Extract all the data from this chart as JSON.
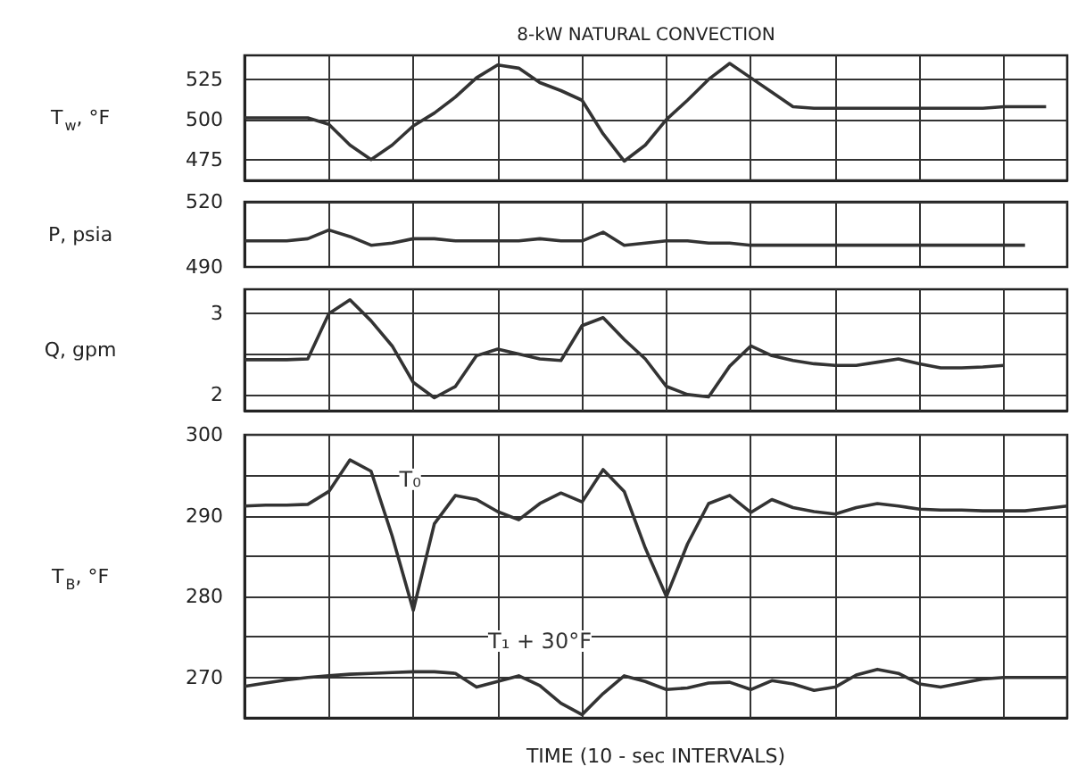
{
  "chart_data": [
    {
      "type": "line",
      "title": "8-kW NATURAL CONVECTION",
      "ylabel": "T$_{w}$, °F",
      "categories": [
        null,
        null,
        null,
        null,
        null,
        null,
        null,
        null,
        null,
        null,
        null,
        null,
        null,
        null,
        null,
        null,
        null,
        null,
        null,
        null,
        null,
        null,
        null,
        null,
        null,
        null,
        null,
        null,
        null,
        null,
        null,
        null,
        null,
        null,
        null,
        null,
        null,
        null,
        null,
        null
      ],
      "series": [
        {
          "color": "#333333",
          "values": [
            501,
            501,
            501,
            501,
            497,
            484,
            475,
            484,
            496,
            504,
            514,
            526,
            534,
            532,
            523,
            518,
            512,
            491,
            474,
            484,
            500,
            512,
            525,
            535,
            526,
            517,
            508,
            507,
            507,
            507,
            507,
            507,
            507,
            507,
            507,
            507,
            508,
            508,
            508,
            null
          ]
        }
      ],
      "ylim": [
        462,
        540
      ],
      "yticks": [
        475,
        500,
        525
      ],
      "grid": true,
      "tick_labels": "y"
    },
    {
      "type": "line",
      "ylabel": "P, psia",
      "categories": [
        null,
        null,
        null,
        null,
        null,
        null,
        null,
        null,
        null,
        null,
        null,
        null,
        null,
        null,
        null,
        null,
        null,
        null,
        null,
        null,
        null,
        null,
        null,
        null,
        null,
        null,
        null,
        null,
        null,
        null,
        null,
        null,
        null,
        null,
        null,
        null,
        null,
        null,
        null,
        null
      ],
      "series": [
        {
          "color": "#333333",
          "values": [
            502,
            502,
            502,
            503,
            507,
            504,
            500,
            501,
            503,
            503,
            502,
            502,
            502,
            502,
            503,
            502,
            502,
            506,
            500,
            501,
            502,
            502,
            501,
            501,
            500,
            500,
            500,
            500,
            500,
            500,
            500,
            500,
            500,
            500,
            500,
            500,
            500,
            500,
            null,
            null
          ]
        }
      ],
      "ylim": [
        490,
        520
      ],
      "yticks": [
        490,
        520
      ],
      "grid": true,
      "tick_labels": "y"
    },
    {
      "type": "line",
      "ylabel": "Q, gpm",
      "categories": [
        null,
        null,
        null,
        null,
        null,
        null,
        null,
        null,
        null,
        null,
        null,
        null,
        null,
        null,
        null,
        null,
        null,
        null,
        null,
        null,
        null,
        null,
        null,
        null,
        null,
        null,
        null,
        null,
        null,
        null,
        null,
        null,
        null,
        null,
        null,
        null,
        null,
        null,
        null,
        null
      ],
      "series": [
        {
          "color": "#333333",
          "values": [
            2.43,
            2.43,
            2.43,
            2.44,
            3.0,
            3.17,
            2.91,
            2.6,
            2.15,
            1.96,
            2.1,
            2.48,
            2.56,
            2.5,
            2.44,
            2.42,
            2.85,
            2.95,
            2.68,
            2.44,
            2.1,
            2.0,
            1.97,
            2.35,
            2.6,
            2.48,
            2.42,
            2.38,
            2.36,
            2.36,
            2.4,
            2.44,
            2.38,
            2.33,
            2.33,
            2.34,
            2.36,
            null,
            null,
            null
          ]
        }
      ],
      "ylim": [
        1.8,
        3.3
      ],
      "yticks": [
        2,
        {
          "value": 2.5,
          "label": null
        },
        3
      ],
      "grid": true,
      "tick_labels": "y"
    },
    {
      "type": "line",
      "ylabel": "T$_{B}$, °F",
      "xlabel": "TIME (10 - sec INTERVALS)",
      "categories": [
        null,
        null,
        null,
        null,
        null,
        null,
        null,
        null,
        null,
        null,
        null,
        null,
        null,
        null,
        null,
        null,
        null,
        null,
        null,
        null,
        null,
        null,
        null,
        null,
        null,
        null,
        null,
        null,
        null,
        null,
        null,
        null,
        null,
        null,
        null,
        null,
        null,
        null,
        null,
        null
      ],
      "series": [
        {
          "name": "T₀",
          "color": "#333333",
          "values": [
            291.2,
            291.3,
            291.3,
            291.4,
            293,
            296.9,
            295.5,
            287.5,
            278.3,
            289,
            292.5,
            292,
            290.5,
            289.5,
            291.5,
            292.8,
            291.7,
            295.7,
            293,
            286,
            280,
            286.5,
            291.5,
            292.5,
            290.4,
            292,
            291,
            290.5,
            290.2,
            291,
            291.5,
            291.2,
            290.8,
            290.7,
            290.7,
            290.6,
            290.6,
            290.6,
            290.9,
            291.2
          ]
        },
        {
          "name": "T₁ + 30°F",
          "color": "#333333",
          "values": [
            268.9,
            269.3,
            269.7,
            270,
            270.2,
            270.4,
            270.5,
            270.6,
            270.7,
            270.7,
            270.5,
            268.8,
            269.5,
            270.2,
            269,
            266.8,
            265.4,
            268,
            270.2,
            269.5,
            268.5,
            268.7,
            269.3,
            269.4,
            268.5,
            269.6,
            269.2,
            268.4,
            268.8,
            270.3,
            271,
            270.5,
            269.2,
            268.8,
            269.3,
            269.8,
            270,
            270,
            270,
            270
          ]
        }
      ],
      "ylim": [
        265,
        300
      ],
      "yticks": [
        {
          "value": 270,
          "label": "270"
        },
        {
          "value": 275,
          "label": null
        },
        280,
        {
          "value": 285,
          "label": null
        },
        290,
        {
          "value": 295,
          "label": null
        },
        300
      ],
      "grid": true,
      "tick_labels": "y"
    }
  ]
}
